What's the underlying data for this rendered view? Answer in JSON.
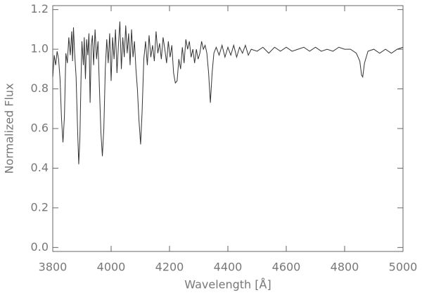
{
  "chart_data": {
    "type": "line",
    "xlabel": "Wavelength [Å]",
    "ylabel": "Normalized Flux",
    "color": "#333333",
    "xlim": [
      3800,
      5000
    ],
    "ylim": [
      -0.02,
      1.22
    ],
    "xticks": [
      3800,
      4000,
      4200,
      4400,
      4600,
      4800,
      5000
    ],
    "yticks": [
      {
        "value": 0,
        "label": "0.0"
      },
      0.2,
      0.4,
      0.6,
      0.8,
      {
        "value": 1,
        "label": "1.0"
      },
      1.2
    ],
    "x": [
      3800,
      3805,
      3810,
      3815,
      3820,
      3825,
      3830,
      3835,
      3840,
      3845,
      3850,
      3855,
      3860,
      3865,
      3868,
      3871,
      3875,
      3880,
      3885,
      3889,
      3893,
      3897,
      3900,
      3905,
      3908,
      3912,
      3916,
      3920,
      3924,
      3928,
      3932,
      3936,
      3940,
      3945,
      3950,
      3955,
      3960,
      3965,
      3970,
      3975,
      3980,
      3985,
      3990,
      3995,
      4000,
      4005,
      4010,
      4015,
      4020,
      4025,
      4030,
      4035,
      4040,
      4045,
      4050,
      4055,
      4060,
      4065,
      4070,
      4075,
      4080,
      4085,
      4090,
      4095,
      4101,
      4106,
      4112,
      4118,
      4124,
      4130,
      4136,
      4142,
      4148,
      4154,
      4160,
      4166,
      4172,
      4178,
      4184,
      4190,
      4196,
      4202,
      4208,
      4214,
      4220,
      4226,
      4232,
      4238,
      4244,
      4250,
      4256,
      4262,
      4268,
      4274,
      4280,
      4286,
      4292,
      4298,
      4304,
      4310,
      4316,
      4322,
      4328,
      4334,
      4340,
      4346,
      4352,
      4360,
      4370,
      4380,
      4390,
      4400,
      4410,
      4420,
      4430,
      4440,
      4450,
      4460,
      4470,
      4480,
      4500,
      4520,
      4540,
      4560,
      4580,
      4600,
      4620,
      4640,
      4660,
      4680,
      4700,
      4720,
      4740,
      4760,
      4780,
      4800,
      4820,
      4840,
      4852,
      4858,
      4862,
      4868,
      4880,
      4900,
      4920,
      4940,
      4960,
      4980,
      5000
    ],
    "values": [
      0.86,
      0.97,
      0.92,
      0.99,
      0.95,
      0.85,
      0.65,
      0.53,
      0.66,
      0.98,
      0.93,
      1.06,
      0.97,
      1.09,
      0.94,
      1.11,
      0.98,
      0.86,
      0.6,
      0.42,
      0.55,
      0.86,
      1.04,
      0.92,
      1.06,
      0.85,
      1.05,
      0.97,
      1.08,
      0.73,
      1.02,
      1.07,
      0.92,
      1.1,
      0.95,
      1.04,
      0.8,
      0.58,
      0.46,
      0.6,
      0.9,
      1.05,
      0.93,
      1.08,
      0.84,
      1.06,
      0.95,
      1.1,
      0.88,
      1.02,
      1.14,
      0.9,
      1.06,
      0.96,
      1.12,
      0.98,
      1.08,
      0.92,
      1.1,
      0.96,
      1.04,
      0.9,
      0.8,
      0.65,
      0.52,
      0.68,
      0.95,
      1.04,
      0.92,
      1.07,
      0.96,
      1.02,
      0.94,
      1.09,
      0.98,
      1.03,
      0.95,
      1.06,
      1.0,
      0.93,
      1.04,
      0.96,
      1.02,
      0.88,
      0.83,
      0.84,
      0.95,
      0.9,
      1.01,
      0.93,
      1.05,
      1.0,
      1.04,
      0.96,
      1.0,
      0.93,
      1.0,
      0.95,
      0.98,
      1.04,
      1.0,
      1.02,
      0.98,
      0.88,
      0.73,
      0.88,
      0.98,
      1.01,
      0.97,
      1.02,
      0.96,
      1.01,
      0.97,
      1.02,
      0.96,
      1.01,
      0.98,
      1.02,
      0.97,
      1.0,
      0.99,
      1.01,
      0.98,
      1.01,
      0.99,
      1.01,
      0.99,
      1.0,
      1.01,
      0.99,
      1.01,
      0.99,
      1.0,
      0.99,
      1.01,
      1.0,
      1.0,
      0.98,
      0.94,
      0.87,
      0.86,
      0.93,
      0.99,
      1.0,
      0.98,
      1.0,
      0.98,
      1.0,
      1.01
    ]
  }
}
